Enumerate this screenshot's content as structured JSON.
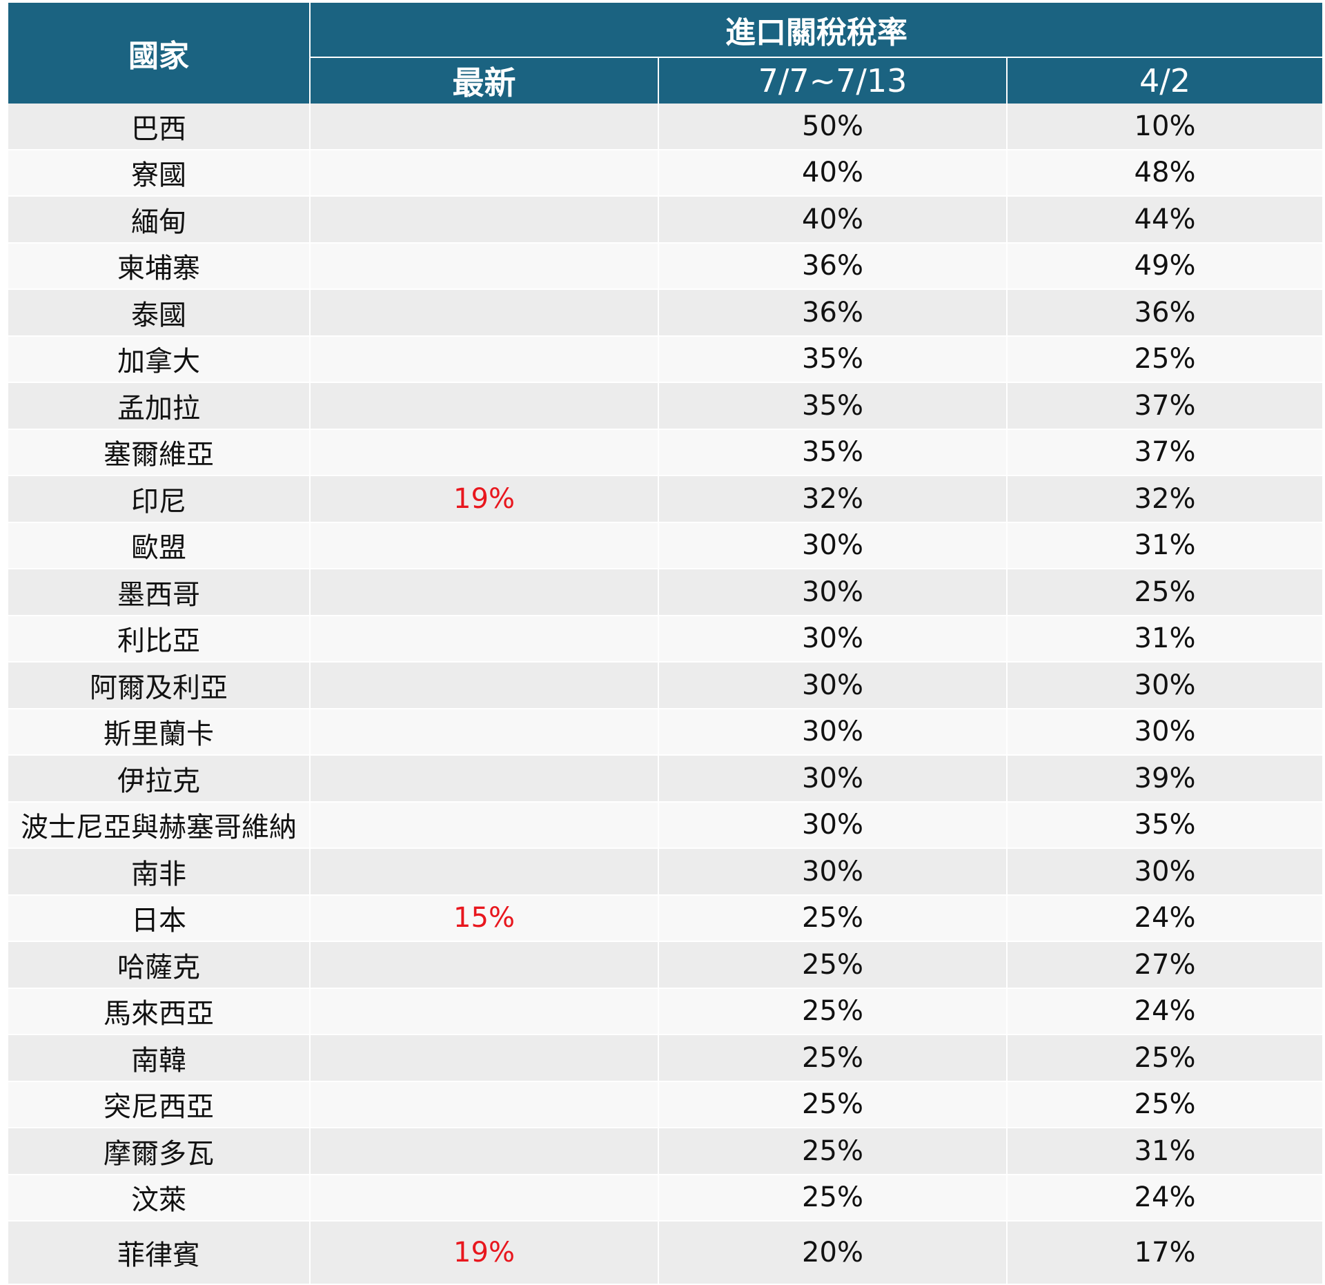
{
  "header": {
    "country": "國家",
    "group": "進口關稅稅率",
    "latest": "最新",
    "period": "7/7~7/13",
    "apr": "4/2"
  },
  "colors": {
    "header_bg": "#1b6381",
    "highlight": "#e8171e"
  },
  "rows": [
    {
      "country": "巴西",
      "latest": "",
      "period": "50%",
      "apr": "10%"
    },
    {
      "country": "寮國",
      "latest": "",
      "period": "40%",
      "apr": "48%"
    },
    {
      "country": "緬甸",
      "latest": "",
      "period": "40%",
      "apr": "44%"
    },
    {
      "country": "柬埔寨",
      "latest": "",
      "period": "36%",
      "apr": "49%"
    },
    {
      "country": "泰國",
      "latest": "",
      "period": "36%",
      "apr": "36%"
    },
    {
      "country": "加拿大",
      "latest": "",
      "period": "35%",
      "apr": "25%"
    },
    {
      "country": "孟加拉",
      "latest": "",
      "period": "35%",
      "apr": "37%"
    },
    {
      "country": "塞爾維亞",
      "latest": "",
      "period": "35%",
      "apr": "37%"
    },
    {
      "country": "印尼",
      "latest": "19%",
      "period": "32%",
      "apr": "32%"
    },
    {
      "country": "歐盟",
      "latest": "",
      "period": "30%",
      "apr": "31%"
    },
    {
      "country": "墨西哥",
      "latest": "",
      "period": "30%",
      "apr": "25%"
    },
    {
      "country": "利比亞",
      "latest": "",
      "period": "30%",
      "apr": "31%"
    },
    {
      "country": "阿爾及利亞",
      "latest": "",
      "period": "30%",
      "apr": "30%"
    },
    {
      "country": "斯里蘭卡",
      "latest": "",
      "period": "30%",
      "apr": "30%"
    },
    {
      "country": "伊拉克",
      "latest": "",
      "period": "30%",
      "apr": "39%"
    },
    {
      "country": "波士尼亞與赫塞哥維納",
      "latest": "",
      "period": "30%",
      "apr": "35%"
    },
    {
      "country": "南非",
      "latest": "",
      "period": "30%",
      "apr": "30%"
    },
    {
      "country": "日本",
      "latest": "15%",
      "period": "25%",
      "apr": "24%"
    },
    {
      "country": "哈薩克",
      "latest": "",
      "period": "25%",
      "apr": "27%"
    },
    {
      "country": "馬來西亞",
      "latest": "",
      "period": "25%",
      "apr": "24%"
    },
    {
      "country": "南韓",
      "latest": "",
      "period": "25%",
      "apr": "25%"
    },
    {
      "country": "突尼西亞",
      "latest": "",
      "period": "25%",
      "apr": "25%"
    },
    {
      "country": "摩爾多瓦",
      "latest": "",
      "period": "25%",
      "apr": "31%"
    },
    {
      "country": "汶萊",
      "latest": "",
      "period": "25%",
      "apr": "24%"
    },
    {
      "country": "菲律賓",
      "latest": "19%",
      "period": "20%",
      "apr": "17%"
    }
  ]
}
